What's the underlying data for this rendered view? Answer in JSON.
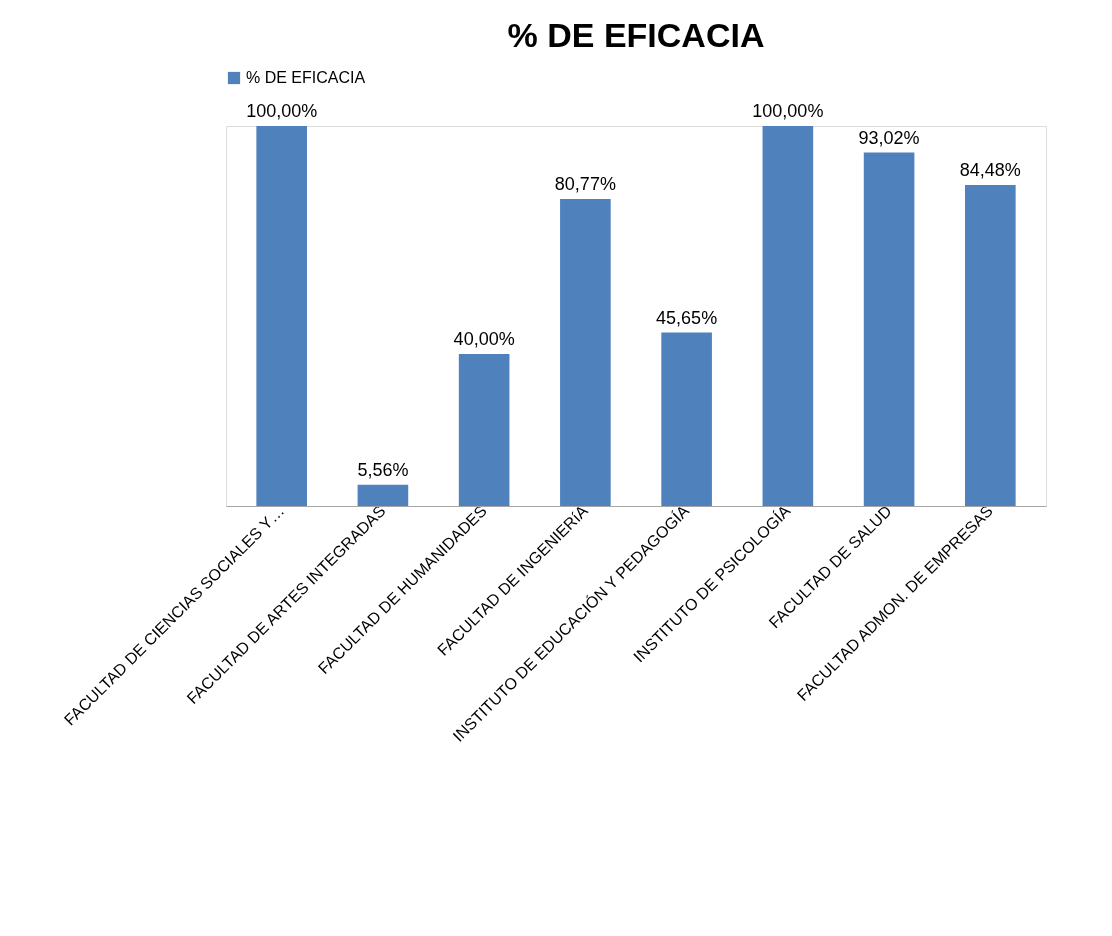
{
  "chart_data": {
    "type": "bar",
    "title": "% DE EFICACIA",
    "categories": [
      "FACULTAD DE CIENCIAS SOCIALES Y…",
      "FACULTAD DE ARTES INTEGRADAS",
      "FACULTAD DE HUMANIDADES",
      "FACULTAD DE INGENIERíA",
      "INSTITUTO DE EDUCACIÓN Y PEDAGOGÍA",
      "INSTITUTO DE PSICOLOGÍA",
      "FACULTAD DE SALUD",
      "FACULTAD ADMON. DE EMPRESAS"
    ],
    "series": [
      {
        "name": "% DE EFICACIA",
        "color": "#4f81bd",
        "values": [
          100,
          5.56,
          40,
          80.77,
          45.65,
          100,
          93.02,
          84.48
        ],
        "value_labels": [
          "100,00%",
          "5,56%",
          "40,00%",
          "80,77%",
          "45,65%",
          "100,00%",
          "93,02%",
          "84,48%"
        ]
      }
    ],
    "legend": "top",
    "grid": false,
    "tick_labels": "x"
  }
}
